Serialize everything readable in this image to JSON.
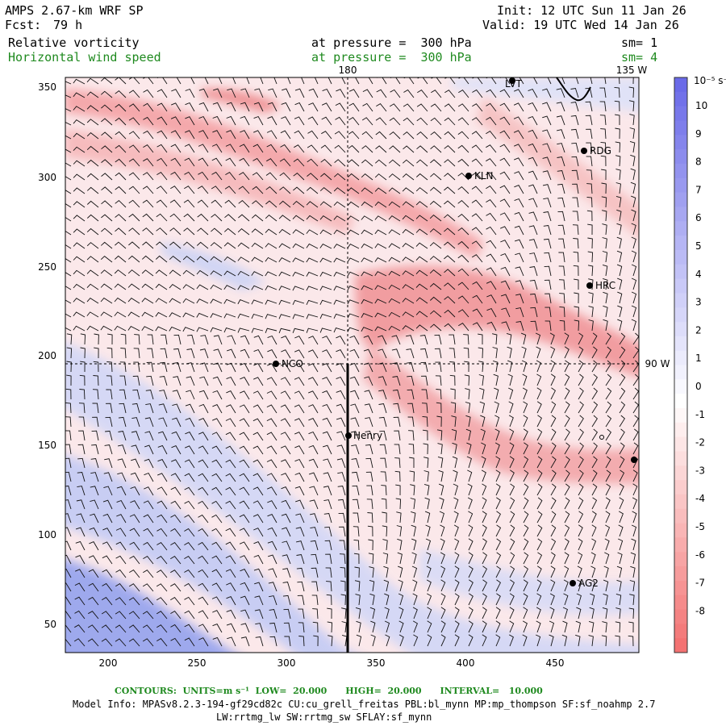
{
  "header": {
    "model": "AMPS 2.67-km WRF SP",
    "fcst_label": "Fcst:",
    "fcst_value": "79 h",
    "init": "Init: 12 UTC Sun 11 Jan 26",
    "valid": "Valid: 19 UTC Wed 14 Jan 26",
    "field1": "Relative vorticity",
    "field1_level": "at pressure =  300 hPa",
    "field1_sm": "sm= 1",
    "field2": "Horizontal wind speed",
    "field2_level": "at pressure =  300 hPa",
    "field2_sm": "sm= 4"
  },
  "map": {
    "x_ticks": [
      "200",
      "250",
      "300",
      "350",
      "400",
      "450"
    ],
    "y_ticks": [
      "50",
      "100",
      "150",
      "200",
      "250",
      "300",
      "350"
    ],
    "meridian_labels": [
      "180",
      "135 W",
      "90 W"
    ],
    "stations": [
      {
        "name": "LVT"
      },
      {
        "name": "RDG"
      },
      {
        "name": "KLN"
      },
      {
        "name": "HRC"
      },
      {
        "name": "NCO"
      },
      {
        "name": "Henry"
      },
      {
        "name": "AG2"
      }
    ]
  },
  "colorbar": {
    "unit": "10⁻⁵ s⁻¹",
    "labels": [
      "10",
      "9",
      "8",
      "7",
      "6",
      "5",
      "4",
      "3",
      "2",
      "1",
      "0",
      "-1",
      "-2",
      "-3",
      "-4",
      "-5",
      "-6",
      "-7",
      "-8"
    ],
    "colors": {
      "positive": "#6a6ae8",
      "negative": "#f26a6a",
      "neutral": "#ffffff"
    }
  },
  "footer": {
    "contours": "CONTOURS:  UNITS=m s⁻¹  LOW=  20.000      HIGH=  20.000      INTERVAL=   10.000",
    "model_info": "Model Info: MPASv8.2.3-194-gf29cd82c CU:cu_grell_freitas PBL:bl_mynn MP:mp_thompson SF:sf_noahmp 2.7",
    "model_info2": "LW:rrtmg_lw SW:rrtmg_sw SFLAY:sf_mynn"
  }
}
